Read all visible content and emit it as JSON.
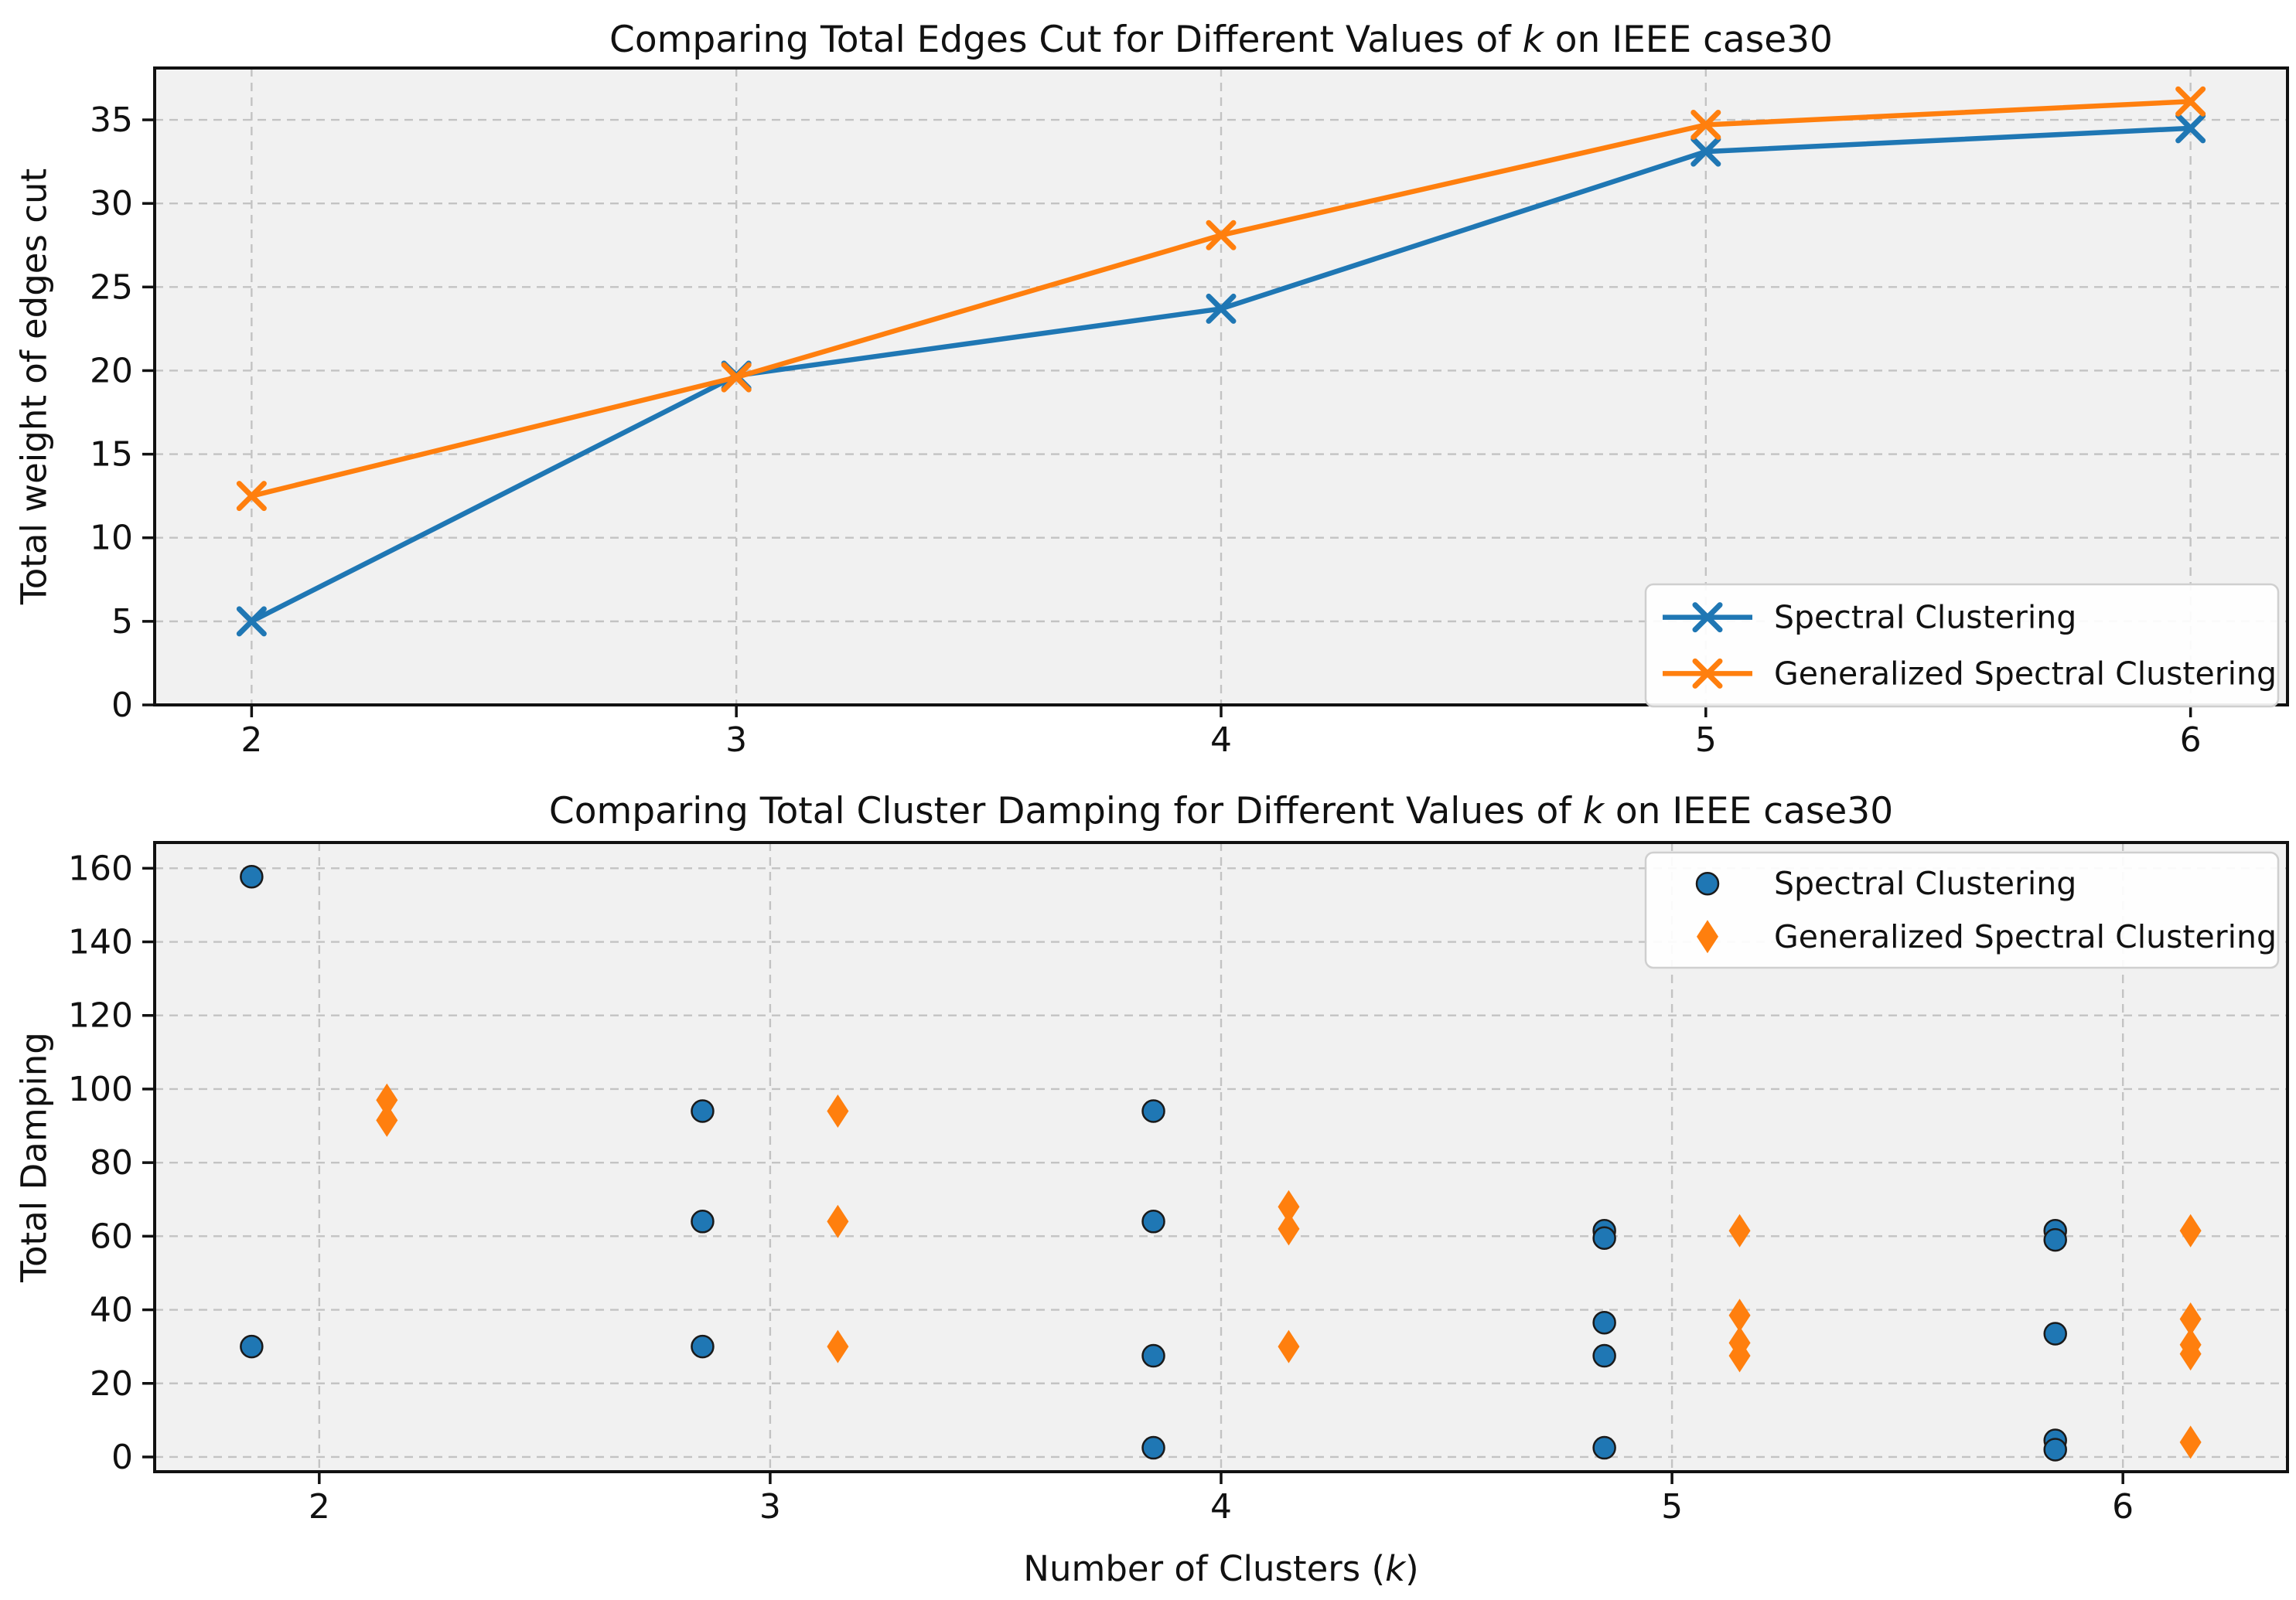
{
  "figure": {
    "background": "#ffffff",
    "axes_face_color": "#f1f1f1",
    "grid_color": "#c3c3c3",
    "spine_color": "#111111",
    "text_color": "#111111",
    "legend_face_color": "#ffffff",
    "legend_edge_color": "#cfcfcf"
  },
  "chart_data": [
    {
      "type": "line",
      "title_prefix": "Comparing Total Edges Cut for Different Values of ",
      "title_italic": "k",
      "title_suffix": " on IEEE case30",
      "ylabel": "Total weight of edges cut",
      "xlabel": "",
      "x": [
        2,
        3,
        4,
        5,
        6
      ],
      "xticks": [
        2,
        3,
        4,
        5,
        6
      ],
      "yticks": [
        0,
        5,
        10,
        15,
        20,
        25,
        30,
        35
      ],
      "xlim": [
        1.8,
        6.2
      ],
      "ylim": [
        0,
        38.1
      ],
      "grid": true,
      "legend_position": "lower right",
      "series": [
        {
          "name": "Spectral Clustering",
          "color": "#1f77b4",
          "marker": "x-cross",
          "values": [
            5.0,
            19.7,
            23.7,
            33.1,
            34.5
          ]
        },
        {
          "name": "Generalized Spectral Clustering",
          "color": "#ff7f0e",
          "marker": "x-cross",
          "values": [
            12.5,
            19.6,
            28.1,
            34.7,
            36.1
          ]
        }
      ]
    },
    {
      "type": "scatter",
      "title_prefix": "Comparing Total Cluster Damping for Different Values of ",
      "title_italic": "k",
      "title_suffix": " on IEEE case30",
      "ylabel": "Total Damping",
      "xlabel_prefix": "Number of Clusters (",
      "xlabel_italic": "k",
      "xlabel_suffix": ")",
      "xticks": [
        2,
        3,
        4,
        5,
        6
      ],
      "yticks": [
        0,
        20,
        40,
        60,
        80,
        100,
        120,
        140,
        160
      ],
      "xlim": [
        1.635,
        6.365
      ],
      "ylim": [
        -4,
        167
      ],
      "grid": true,
      "legend_position": "upper right",
      "series": [
        {
          "name": "Spectral Clustering",
          "color": "#1f77b4",
          "marker": "circle",
          "points": [
            [
              1.85,
              157.7
            ],
            [
              1.85,
              30
            ],
            [
              2.85,
              94
            ],
            [
              2.85,
              64
            ],
            [
              2.85,
              30
            ],
            [
              3.85,
              94
            ],
            [
              3.85,
              64
            ],
            [
              3.85,
              27.5
            ],
            [
              3.85,
              2.5
            ],
            [
              4.85,
              61.5
            ],
            [
              4.85,
              59.5
            ],
            [
              4.85,
              36.5
            ],
            [
              4.85,
              27.5
            ],
            [
              4.85,
              2.5
            ],
            [
              5.85,
              61.5
            ],
            [
              5.85,
              59
            ],
            [
              5.85,
              33.5
            ],
            [
              5.85,
              4.5
            ],
            [
              5.85,
              2
            ]
          ]
        },
        {
          "name": "Generalized Spectral Clustering",
          "color": "#ff7f0e",
          "marker": "thin-diamond",
          "points": [
            [
              2.15,
              97
            ],
            [
              2.15,
              91.5
            ],
            [
              3.15,
              94
            ],
            [
              3.15,
              64
            ],
            [
              3.15,
              30
            ],
            [
              4.15,
              68
            ],
            [
              4.15,
              62
            ],
            [
              4.15,
              30
            ],
            [
              5.15,
              61.5
            ],
            [
              5.15,
              38.5
            ],
            [
              5.15,
              31
            ],
            [
              5.15,
              27.5
            ],
            [
              6.15,
              61.5
            ],
            [
              6.15,
              37.5
            ],
            [
              6.15,
              30.5
            ],
            [
              6.15,
              28
            ],
            [
              6.15,
              4
            ]
          ]
        }
      ]
    }
  ]
}
